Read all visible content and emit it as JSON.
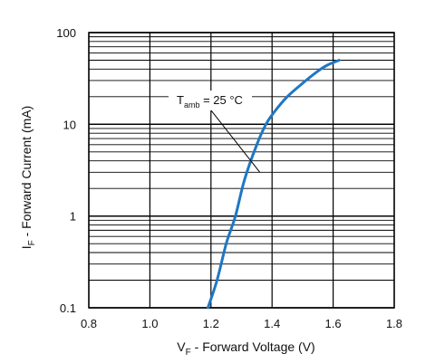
{
  "chart_data": {
    "type": "line",
    "title": "",
    "x_axis": {
      "label_main": "V",
      "label_sub": "F",
      "label_rest": " - Forward Voltage (V)",
      "range": [
        0.8,
        1.8
      ],
      "ticks": [
        0.8,
        1.0,
        1.2,
        1.4,
        1.6,
        1.8
      ],
      "tick_labels": [
        "0.8",
        "1.0",
        "1.2",
        "1.4",
        "1.6",
        "1.8"
      ]
    },
    "y_axis": {
      "label_main": "I",
      "label_sub": "F",
      "label_rest": " - Forward Current (mA)",
      "scale": "log",
      "range": [
        0.1,
        100
      ],
      "ticks": [
        0.1,
        1,
        10,
        100
      ],
      "tick_labels": [
        "0.1",
        "1",
        "10",
        "100"
      ]
    },
    "grid": true,
    "series": [
      {
        "color": "#1f77c4",
        "points": [
          [
            1.19,
            0.1
          ],
          [
            1.22,
            0.2
          ],
          [
            1.25,
            0.5
          ],
          [
            1.28,
            1.0
          ],
          [
            1.31,
            2.5
          ],
          [
            1.35,
            6.0
          ],
          [
            1.38,
            10.0
          ],
          [
            1.41,
            14.0
          ],
          [
            1.45,
            20.0
          ],
          [
            1.5,
            28.0
          ],
          [
            1.55,
            38.0
          ],
          [
            1.58,
            44.0
          ],
          [
            1.62,
            50.0
          ]
        ]
      }
    ],
    "annotation": {
      "text_main": "T",
      "text_sub": "amb",
      "text_rest": " = 25 °C",
      "points_to": [
        1.36,
        3.0
      ]
    }
  }
}
